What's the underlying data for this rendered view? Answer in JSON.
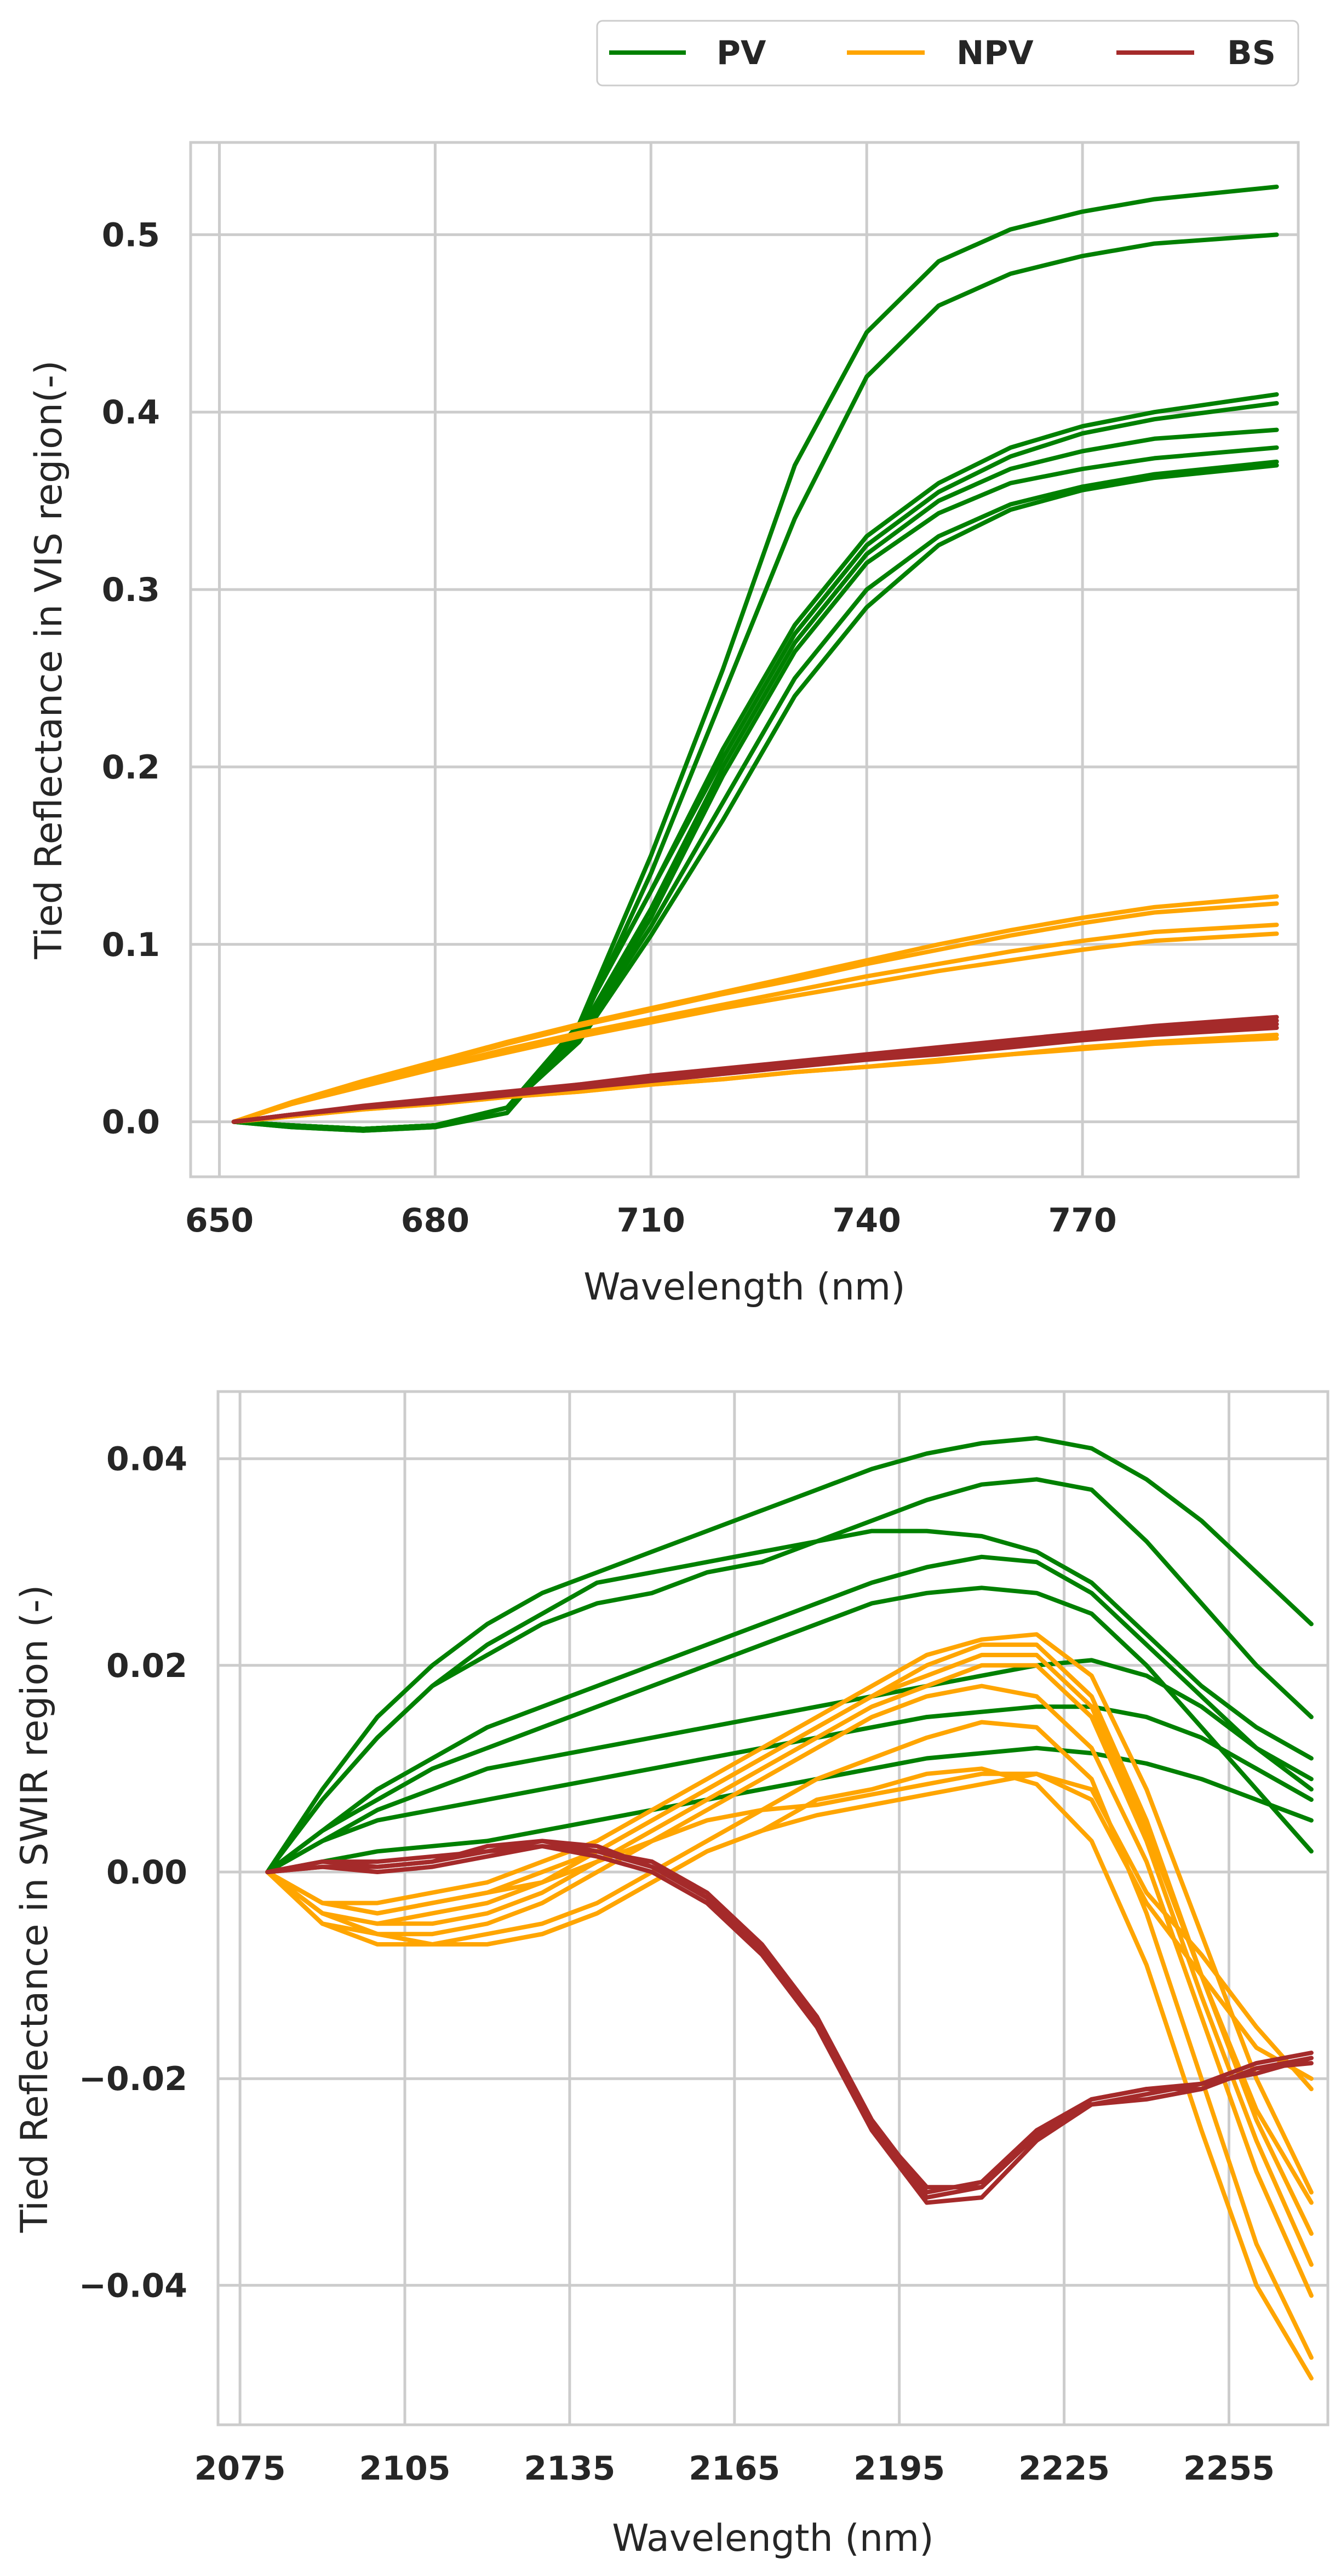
{
  "legend": {
    "entries": [
      {
        "label": "PV",
        "color": "#008000"
      },
      {
        "label": "NPV",
        "color": "#FFA500"
      },
      {
        "label": "BS",
        "color": "#A52A2A"
      }
    ]
  },
  "chart_data": [
    {
      "type": "line",
      "title": "",
      "xlabel": "Wavelength (nm)",
      "ylabel": "Tied Reflectance in VIS region(-)",
      "xlim": [
        646,
        800
      ],
      "ylim": [
        -0.031,
        0.552
      ],
      "xticks": [
        650,
        680,
        710,
        740,
        770
      ],
      "xtick_labels": [
        "650",
        "680",
        "710",
        "740",
        "770"
      ],
      "yticks": [
        0.0,
        0.1,
        0.2,
        0.3,
        0.4,
        0.5
      ],
      "ytick_labels": [
        "0.0",
        "0.1",
        "0.2",
        "0.3",
        "0.4",
        "0.5"
      ],
      "grid": true,
      "x": [
        652,
        660,
        670,
        680,
        690,
        700,
        710,
        720,
        730,
        740,
        750,
        760,
        770,
        780,
        797
      ],
      "series": [
        {
          "name": "PV",
          "color": "#008000",
          "values": [
            0,
            -0.003,
            -0.005,
            -0.003,
            0.005,
            0.055,
            0.15,
            0.255,
            0.37,
            0.445,
            0.485,
            0.503,
            0.513,
            0.52,
            0.527
          ]
        },
        {
          "name": "PV",
          "color": "#008000",
          "values": [
            0,
            -0.003,
            -0.005,
            -0.003,
            0.005,
            0.052,
            0.14,
            0.24,
            0.34,
            0.42,
            0.46,
            0.478,
            0.488,
            0.495,
            0.5
          ]
        },
        {
          "name": "PV",
          "color": "#008000",
          "values": [
            0,
            -0.002,
            -0.004,
            -0.002,
            0.008,
            0.055,
            0.13,
            0.21,
            0.28,
            0.33,
            0.36,
            0.38,
            0.392,
            0.4,
            0.41
          ]
        },
        {
          "name": "PV",
          "color": "#008000",
          "values": [
            0,
            -0.002,
            -0.004,
            -0.002,
            0.008,
            0.055,
            0.13,
            0.205,
            0.275,
            0.325,
            0.355,
            0.375,
            0.388,
            0.396,
            0.405
          ]
        },
        {
          "name": "PV",
          "color": "#008000",
          "values": [
            0,
            -0.002,
            -0.004,
            -0.002,
            0.008,
            0.05,
            0.12,
            0.2,
            0.27,
            0.32,
            0.35,
            0.368,
            0.378,
            0.385,
            0.39
          ]
        },
        {
          "name": "PV",
          "color": "#008000",
          "values": [
            0,
            -0.002,
            -0.004,
            -0.002,
            0.008,
            0.05,
            0.115,
            0.195,
            0.265,
            0.315,
            0.343,
            0.36,
            0.368,
            0.374,
            0.38
          ]
        },
        {
          "name": "PV",
          "color": "#008000",
          "values": [
            0,
            -0.002,
            -0.004,
            -0.002,
            0.008,
            0.048,
            0.11,
            0.18,
            0.25,
            0.3,
            0.33,
            0.348,
            0.358,
            0.365,
            0.372
          ]
        },
        {
          "name": "PV",
          "color": "#008000",
          "values": [
            0,
            -0.002,
            -0.004,
            -0.002,
            0.008,
            0.045,
            0.105,
            0.17,
            0.24,
            0.29,
            0.325,
            0.345,
            0.356,
            0.363,
            0.37
          ]
        },
        {
          "name": "NPV",
          "color": "#FFA500",
          "values": [
            0,
            0.011,
            0.023,
            0.034,
            0.045,
            0.055,
            0.064,
            0.073,
            0.082,
            0.091,
            0.1,
            0.108,
            0.115,
            0.121,
            0.127
          ]
        },
        {
          "name": "NPV",
          "color": "#FFA500",
          "values": [
            0,
            0.01,
            0.022,
            0.033,
            0.044,
            0.054,
            0.063,
            0.072,
            0.08,
            0.089,
            0.097,
            0.105,
            0.112,
            0.118,
            0.123
          ]
        },
        {
          "name": "NPV",
          "color": "#FFA500",
          "values": [
            0,
            0.01,
            0.021,
            0.031,
            0.041,
            0.05,
            0.058,
            0.066,
            0.074,
            0.082,
            0.089,
            0.096,
            0.102,
            0.107,
            0.111
          ]
        },
        {
          "name": "NPV",
          "color": "#FFA500",
          "values": [
            0,
            0.01,
            0.02,
            0.03,
            0.039,
            0.048,
            0.056,
            0.064,
            0.071,
            0.078,
            0.085,
            0.091,
            0.097,
            0.102,
            0.106
          ]
        },
        {
          "name": "NPV",
          "color": "#FFA500",
          "values": [
            0,
            0.003,
            0.007,
            0.01,
            0.014,
            0.017,
            0.021,
            0.024,
            0.028,
            0.031,
            0.034,
            0.038,
            0.041,
            0.044,
            0.047
          ]
        },
        {
          "name": "NPV",
          "color": "#FFA500",
          "values": [
            0,
            0.003,
            0.007,
            0.01,
            0.014,
            0.017,
            0.021,
            0.024,
            0.028,
            0.031,
            0.035,
            0.038,
            0.042,
            0.045,
            0.049
          ]
        },
        {
          "name": "BS",
          "color": "#A52A2A",
          "values": [
            0,
            0.004,
            0.008,
            0.011,
            0.015,
            0.019,
            0.023,
            0.027,
            0.031,
            0.035,
            0.038,
            0.042,
            0.046,
            0.049,
            0.053
          ]
        },
        {
          "name": "BS",
          "color": "#A52A2A",
          "values": [
            0,
            0.004,
            0.008,
            0.012,
            0.016,
            0.02,
            0.024,
            0.028,
            0.032,
            0.036,
            0.04,
            0.044,
            0.048,
            0.051,
            0.055
          ]
        },
        {
          "name": "BS",
          "color": "#A52A2A",
          "values": [
            0,
            0.004,
            0.008,
            0.012,
            0.016,
            0.021,
            0.025,
            0.029,
            0.033,
            0.037,
            0.041,
            0.045,
            0.049,
            0.053,
            0.057
          ]
        },
        {
          "name": "BS",
          "color": "#A52A2A",
          "values": [
            0,
            0.004,
            0.009,
            0.013,
            0.017,
            0.021,
            0.026,
            0.03,
            0.034,
            0.038,
            0.042,
            0.046,
            0.05,
            0.054,
            0.059
          ]
        }
      ]
    },
    {
      "type": "line",
      "title": "",
      "xlabel": "Wavelength (nm)",
      "ylabel": "Tied Reflectance in SWIR region (-)",
      "xlim": [
        2071,
        2273
      ],
      "ylim": [
        -0.0535,
        0.0465
      ],
      "xticks": [
        2075,
        2105,
        2135,
        2165,
        2195,
        2225,
        2255
      ],
      "xtick_labels": [
        "2075",
        "2105",
        "2135",
        "2165",
        "2195",
        "2225",
        "2255"
      ],
      "yticks": [
        -0.04,
        -0.02,
        0.0,
        0.02,
        0.04
      ],
      "ytick_labels": [
        "−0.04",
        "−0.02",
        "0.00",
        "0.02",
        "0.04"
      ],
      "grid": true,
      "x": [
        2080,
        2090,
        2100,
        2110,
        2120,
        2130,
        2140,
        2150,
        2160,
        2170,
        2180,
        2190,
        2200,
        2210,
        2220,
        2230,
        2240,
        2250,
        2260,
        2270
      ],
      "series": [
        {
          "name": "PV",
          "color": "#008000",
          "values": [
            0,
            0.008,
            0.015,
            0.02,
            0.024,
            0.027,
            0.029,
            0.031,
            0.033,
            0.035,
            0.037,
            0.039,
            0.0405,
            0.0415,
            0.042,
            0.041,
            0.038,
            0.034,
            0.029,
            0.024
          ]
        },
        {
          "name": "PV",
          "color": "#008000",
          "values": [
            0,
            0.007,
            0.013,
            0.018,
            0.021,
            0.024,
            0.026,
            0.027,
            0.029,
            0.03,
            0.032,
            0.034,
            0.036,
            0.0375,
            0.038,
            0.037,
            0.032,
            0.026,
            0.02,
            0.015
          ]
        },
        {
          "name": "PV",
          "color": "#008000",
          "values": [
            0,
            0.007,
            0.013,
            0.018,
            0.022,
            0.025,
            0.028,
            0.029,
            0.03,
            0.031,
            0.032,
            0.033,
            0.033,
            0.0325,
            0.031,
            0.028,
            0.023,
            0.018,
            0.014,
            0.011
          ]
        },
        {
          "name": "PV",
          "color": "#008000",
          "values": [
            0,
            0.004,
            0.008,
            0.011,
            0.014,
            0.016,
            0.018,
            0.02,
            0.022,
            0.024,
            0.026,
            0.028,
            0.0295,
            0.0305,
            0.03,
            0.027,
            0.022,
            0.017,
            0.012,
            0.008
          ]
        },
        {
          "name": "PV",
          "color": "#008000",
          "values": [
            0,
            0.004,
            0.007,
            0.01,
            0.012,
            0.014,
            0.016,
            0.018,
            0.02,
            0.022,
            0.024,
            0.026,
            0.027,
            0.0275,
            0.027,
            0.025,
            0.02,
            0.014,
            0.008,
            0.002
          ]
        },
        {
          "name": "PV",
          "color": "#008000",
          "values": [
            0,
            0.003,
            0.006,
            0.008,
            0.01,
            0.011,
            0.012,
            0.013,
            0.014,
            0.015,
            0.016,
            0.017,
            0.018,
            0.019,
            0.02,
            0.0205,
            0.019,
            0.016,
            0.012,
            0.009
          ]
        },
        {
          "name": "PV",
          "color": "#008000",
          "values": [
            0,
            0.003,
            0.005,
            0.006,
            0.007,
            0.008,
            0.009,
            0.01,
            0.011,
            0.012,
            0.013,
            0.014,
            0.015,
            0.0155,
            0.016,
            0.016,
            0.015,
            0.013,
            0.01,
            0.007
          ]
        },
        {
          "name": "PV",
          "color": "#008000",
          "values": [
            0,
            0.001,
            0.002,
            0.0025,
            0.003,
            0.004,
            0.005,
            0.006,
            0.007,
            0.008,
            0.009,
            0.01,
            0.011,
            0.0115,
            0.012,
            0.0115,
            0.0105,
            0.009,
            0.007,
            0.005
          ]
        },
        {
          "name": "NPV",
          "color": "#FFA500",
          "values": [
            0,
            -0.003,
            -0.003,
            -0.002,
            -0.001,
            0.001,
            0.003,
            0.006,
            0.009,
            0.012,
            0.015,
            0.018,
            0.021,
            0.0225,
            0.023,
            0.019,
            0.008,
            -0.006,
            -0.02,
            -0.031
          ]
        },
        {
          "name": "NPV",
          "color": "#FFA500",
          "values": [
            0,
            -0.003,
            -0.004,
            -0.003,
            -0.002,
            0,
            0.002,
            0.005,
            0.008,
            0.011,
            0.014,
            0.017,
            0.02,
            0.022,
            0.022,
            0.017,
            0.005,
            -0.01,
            -0.023,
            -0.032
          ]
        },
        {
          "name": "NPV",
          "color": "#FFA500",
          "values": [
            0,
            -0.004,
            -0.005,
            -0.004,
            -0.003,
            -0.001,
            0.002,
            0.005,
            0.008,
            0.011,
            0.014,
            0.017,
            0.019,
            0.021,
            0.021,
            0.016,
            0.004,
            -0.01,
            -0.024,
            -0.035
          ]
        },
        {
          "name": "NPV",
          "color": "#FFA500",
          "values": [
            0,
            -0.004,
            -0.005,
            -0.005,
            -0.004,
            -0.002,
            0.001,
            0.004,
            0.007,
            0.01,
            0.013,
            0.016,
            0.018,
            0.02,
            0.02,
            0.015,
            0.003,
            -0.012,
            -0.026,
            -0.038
          ]
        },
        {
          "name": "NPV",
          "color": "#FFA500",
          "values": [
            0,
            -0.004,
            -0.006,
            -0.006,
            -0.005,
            -0.003,
            0,
            0.003,
            0.006,
            0.009,
            0.012,
            0.015,
            0.017,
            0.018,
            0.017,
            0.012,
            0.001,
            -0.014,
            -0.029,
            -0.041
          ]
        },
        {
          "name": "NPV",
          "color": "#FFA500",
          "values": [
            0,
            -0.005,
            -0.006,
            -0.007,
            -0.006,
            -0.005,
            -0.003,
            0,
            0.003,
            0.006,
            0.009,
            0.011,
            0.013,
            0.0145,
            0.014,
            0.009,
            -0.004,
            -0.02,
            -0.036,
            -0.047
          ]
        },
        {
          "name": "NPV",
          "color": "#FFA500",
          "values": [
            0,
            -0.005,
            -0.007,
            -0.007,
            -0.007,
            -0.006,
            -0.004,
            -0.001,
            0.002,
            0.004,
            0.007,
            0.008,
            0.0095,
            0.01,
            0.0085,
            0.003,
            -0.009,
            -0.025,
            -0.04,
            -0.049
          ]
        },
        {
          "name": "NPV",
          "color": "#FFA500",
          "values": [
            0,
            -0.004,
            -0.006,
            -0.007,
            -0.007,
            -0.006,
            -0.004,
            -0.001,
            0.002,
            0.004,
            0.0055,
            0.0065,
            0.0075,
            0.0085,
            0.0095,
            0.008,
            -0.002,
            -0.008,
            -0.015,
            -0.021
          ]
        },
        {
          "name": "NPV",
          "color": "#FFA500",
          "values": [
            0,
            -0.003,
            -0.004,
            -0.003,
            -0.002,
            -0.001,
            0.001,
            0.003,
            0.005,
            0.006,
            0.0065,
            0.0075,
            0.0085,
            0.0095,
            0.0095,
            0.007,
            -0.003,
            -0.01,
            -0.017,
            -0.02
          ]
        },
        {
          "name": "BS",
          "color": "#A52A2A",
          "values": [
            0,
            0.0005,
            0.0005,
            0.001,
            0.002,
            0.0025,
            0.002,
            0.0005,
            -0.002,
            -0.007,
            -0.014,
            -0.024,
            -0.031,
            -0.03,
            -0.025,
            -0.022,
            -0.021,
            -0.021,
            -0.019,
            -0.018
          ]
        },
        {
          "name": "BS",
          "color": "#A52A2A",
          "values": [
            0,
            0.001,
            0.0005,
            0.001,
            0.0025,
            0.003,
            0.0025,
            0.0005,
            -0.0025,
            -0.0075,
            -0.0145,
            -0.0245,
            -0.0315,
            -0.0305,
            -0.0255,
            -0.0225,
            -0.0215,
            -0.0205,
            -0.0185,
            -0.0175
          ]
        },
        {
          "name": "BS",
          "color": "#A52A2A",
          "values": [
            0,
            0.0005,
            0,
            0.0005,
            0.0015,
            0.0025,
            0.0015,
            0,
            -0.003,
            -0.008,
            -0.015,
            -0.025,
            -0.032,
            -0.0315,
            -0.026,
            -0.0225,
            -0.022,
            -0.021,
            -0.019,
            -0.0185
          ]
        },
        {
          "name": "BS",
          "color": "#A52A2A",
          "values": [
            0,
            0.001,
            0.001,
            0.0015,
            0.002,
            0.003,
            0.002,
            0.001,
            -0.002,
            -0.0075,
            -0.014,
            -0.0245,
            -0.0305,
            -0.0305,
            -0.0255,
            -0.022,
            -0.021,
            -0.0205,
            -0.0195,
            -0.018
          ]
        }
      ]
    }
  ]
}
